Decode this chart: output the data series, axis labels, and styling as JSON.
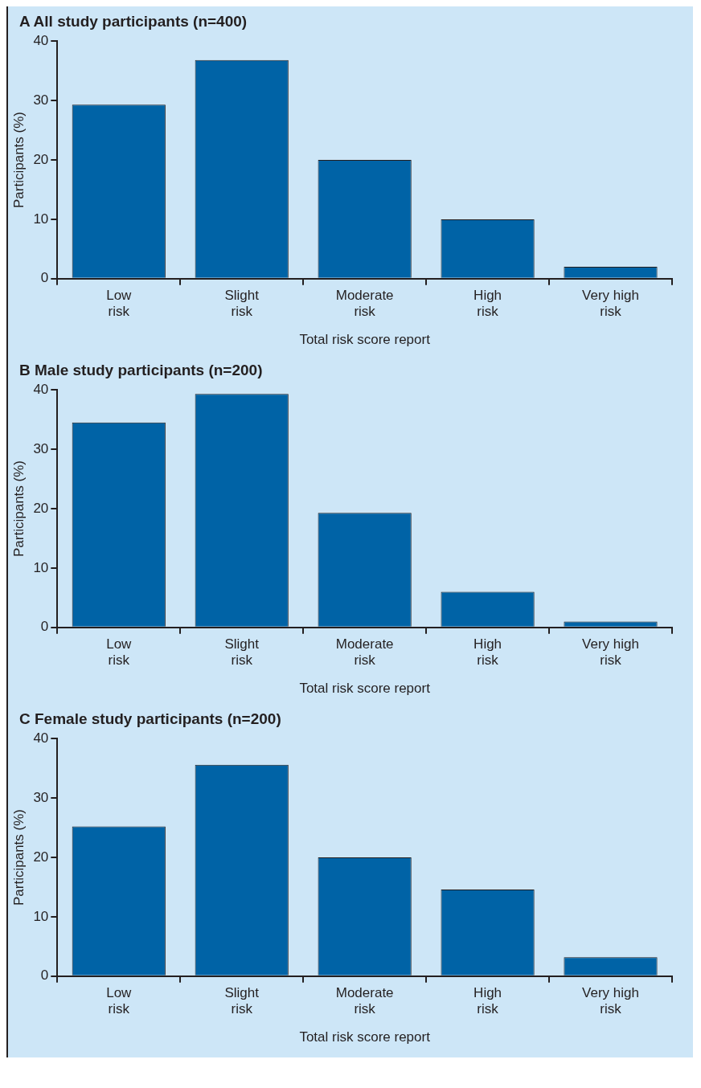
{
  "chart_data": [
    {
      "type": "bar",
      "title": "A All study participants (n=400)",
      "xlabel": "Total risk score report",
      "ylabel": "Participants (%)",
      "categories": [
        "Low risk",
        "Slight risk",
        "Moderate risk",
        "High risk",
        "Very high risk"
      ],
      "values": [
        29.3,
        36.8,
        20.0,
        10.0,
        2.0
      ],
      "color": "#0063a6",
      "ylim": [
        0,
        40
      ],
      "yticks": [
        0,
        10,
        20,
        30,
        40
      ]
    },
    {
      "type": "bar",
      "title": "B Male study participants (n=200)",
      "xlabel": "Total risk score report",
      "ylabel": "Participants (%)",
      "categories": [
        "Low risk",
        "Slight risk",
        "Moderate risk",
        "High risk",
        "Very high risk"
      ],
      "values": [
        34.5,
        39.3,
        19.3,
        6.0,
        1.0
      ],
      "color": "#0063a6",
      "ylim": [
        0,
        40
      ],
      "yticks": [
        0,
        10,
        20,
        30,
        40
      ]
    },
    {
      "type": "bar",
      "title": "C Female study participants (n=200)",
      "xlabel": "Total risk score report",
      "ylabel": "Participants (%)",
      "categories": [
        "Low risk",
        "Slight risk",
        "Moderate risk",
        "High risk",
        "Very high risk"
      ],
      "values": [
        25.2,
        35.6,
        20.0,
        14.6,
        3.2
      ],
      "color": "#0063a6",
      "ylim": [
        0,
        40
      ],
      "yticks": [
        0,
        10,
        20,
        30,
        40
      ]
    }
  ]
}
